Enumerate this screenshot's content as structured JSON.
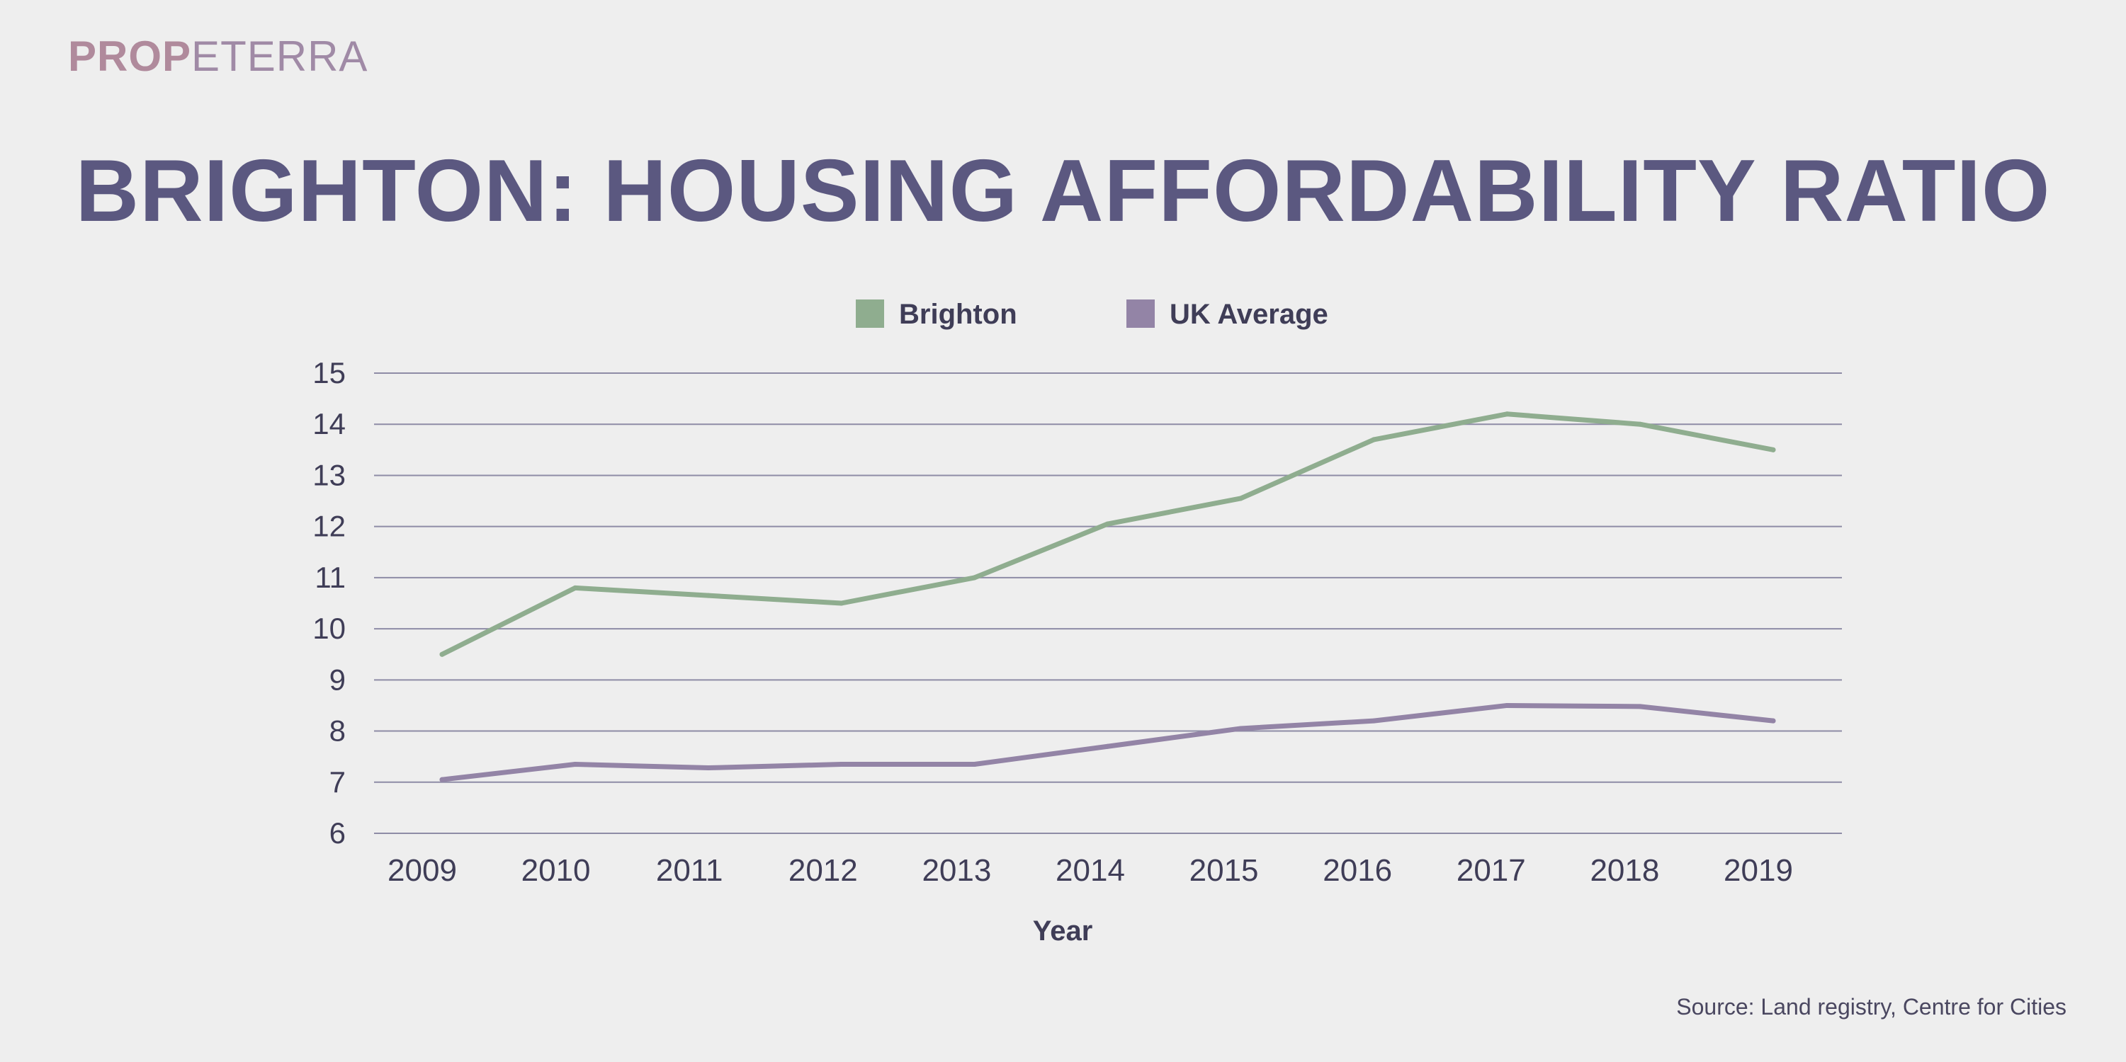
{
  "brand": {
    "part1": "PROP",
    "part2": "ETERRA"
  },
  "chart_data": {
    "type": "line",
    "title": "BRIGHTON: HOUSING AFFORDABILITY RATIO",
    "xlabel": "Year",
    "ylabel": "",
    "ylim": [
      6,
      15
    ],
    "yticks": [
      6,
      7,
      8,
      9,
      10,
      11,
      12,
      13,
      14,
      15
    ],
    "grid": true,
    "legend_position": "top-center",
    "categories": [
      "2009",
      "2010",
      "2011",
      "2012",
      "2013",
      "2014",
      "2015",
      "2016",
      "2017",
      "2018",
      "2019"
    ],
    "series": [
      {
        "name": "Brighton",
        "color": "#8fad8f",
        "values": [
          9.5,
          10.8,
          10.65,
          10.5,
          11.0,
          12.05,
          12.55,
          13.7,
          14.2,
          14.0,
          13.5
        ]
      },
      {
        "name": "UK Average",
        "color": "#9384a6",
        "values": [
          7.05,
          7.35,
          7.28,
          7.35,
          7.35,
          7.7,
          8.05,
          8.2,
          8.5,
          8.48,
          8.2
        ]
      }
    ]
  },
  "source": "Source: Land registry, Centre for Cities"
}
